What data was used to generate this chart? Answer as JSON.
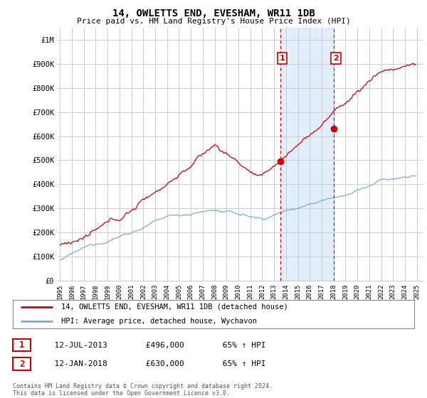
{
  "title": "14, OWLETTS END, EVESHAM, WR11 1DB",
  "subtitle": "Price paid vs. HM Land Registry's House Price Index (HPI)",
  "ylabel_ticks": [
    "£0",
    "£100K",
    "£200K",
    "£300K",
    "£400K",
    "£500K",
    "£600K",
    "£700K",
    "£800K",
    "£900K",
    "£1M"
  ],
  "ytick_values": [
    0,
    100000,
    200000,
    300000,
    400000,
    500000,
    600000,
    700000,
    800000,
    900000,
    1000000
  ],
  "ylim": [
    0,
    1050000
  ],
  "xlim_start": 1994.8,
  "xlim_end": 2025.5,
  "legend_line1": "14, OWLETTS END, EVESHAM, WR11 1DB (detached house)",
  "legend_line2": "HPI: Average price, detached house, Wychavon",
  "line1_color": "#cc0000",
  "line2_color": "#7aabe0",
  "marker1_date": 2013.54,
  "marker1_value": 496000,
  "marker1_label": "1",
  "marker2_date": 2018.04,
  "marker2_value": 630000,
  "marker2_label": "2",
  "table_row1": [
    "1",
    "12-JUL-2013",
    "£496,000",
    "65% ↑ HPI"
  ],
  "table_row2": [
    "2",
    "12-JAN-2018",
    "£630,000",
    "65% ↑ HPI"
  ],
  "footnote": "Contains HM Land Registry data © Crown copyright and database right 2024.\nThis data is licensed under the Open Government Licence v3.0.",
  "background_color": "#ffffff",
  "grid_color": "#cccccc",
  "shaded_region_start": 2013.54,
  "shaded_region_end": 2018.04,
  "shade_color": "#d0e4f5"
}
